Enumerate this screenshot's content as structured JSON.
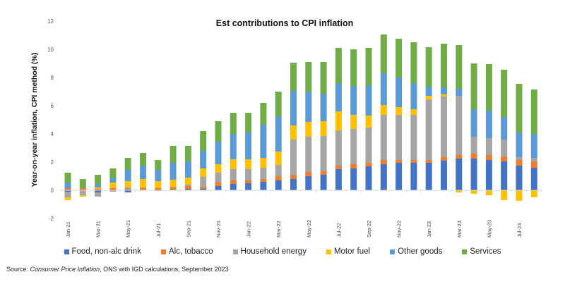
{
  "chart_data": {
    "type": "bar",
    "stacked": true,
    "title": "Est contributions  to CPI inflation",
    "xlabel": "",
    "ylabel": "Year-on-year inflation, CPI method (%)",
    "ylim": [
      -2,
      12
    ],
    "yticks": [
      -2,
      0,
      2,
      4,
      6,
      8,
      10,
      12
    ],
    "grid": false,
    "legend_position": "bottom",
    "categories": [
      "Jan-21",
      "Feb-21",
      "Mar-21",
      "Apr-21",
      "May-21",
      "Jun-21",
      "Jul-21",
      "Aug-21",
      "Sep-21",
      "Oct-21",
      "Nov-21",
      "Dec-21",
      "Jan-22",
      "Feb-22",
      "Mar-22",
      "Apr-22",
      "May-22",
      "Jun-22",
      "Jul-22",
      "Aug-22",
      "Sep-22",
      "Oct-22",
      "Nov-22",
      "Dec-22",
      "Jan-23",
      "Feb-23",
      "Mar-23",
      "Apr-23",
      "May-23",
      "Jun-23",
      "Jul-23",
      "Aug-23"
    ],
    "tick_labels": [
      "Jan-21",
      "",
      "Mar-21",
      "",
      "May-21",
      "",
      "Jul-21",
      "",
      "Sep-21",
      "",
      "Nov-21",
      "",
      "Jan-22",
      "",
      "Mar-22",
      "",
      "May-22",
      "",
      "Jul-22",
      "",
      "Sep-22",
      "",
      "Nov-22",
      "",
      "Jan-23",
      "",
      "Mar-23",
      "",
      "May-23",
      "",
      "Jul-23",
      ""
    ],
    "series": [
      {
        "name": "Food, non-alc drink",
        "color": "#4472C4",
        "values": [
          -0.1,
          0.0,
          -0.15,
          0.0,
          -0.15,
          0.0,
          0.0,
          0.05,
          0.1,
          0.1,
          0.3,
          0.45,
          0.5,
          0.6,
          0.7,
          0.8,
          1.0,
          1.1,
          1.5,
          1.55,
          1.7,
          1.85,
          1.95,
          1.95,
          1.95,
          2.1,
          2.25,
          2.25,
          2.15,
          2.05,
          1.75,
          1.6
        ]
      },
      {
        "name": "Alc, tobacco",
        "color": "#ED7D31",
        "values": [
          0.15,
          0.15,
          0.1,
          0.15,
          0.1,
          0.15,
          0.15,
          0.15,
          0.2,
          0.15,
          0.25,
          0.25,
          0.2,
          0.2,
          0.3,
          0.3,
          0.3,
          0.25,
          0.25,
          0.3,
          0.25,
          0.3,
          0.2,
          0.2,
          0.2,
          0.25,
          0.25,
          0.35,
          0.35,
          0.35,
          0.4,
          0.45
        ]
      },
      {
        "name": "Household energy",
        "color": "#A5A5A5",
        "values": [
          -0.4,
          -0.35,
          -0.3,
          -0.1,
          0.1,
          0.05,
          -0.05,
          0.05,
          0.1,
          0.7,
          0.7,
          0.8,
          0.8,
          0.8,
          0.8,
          2.5,
          2.5,
          2.5,
          2.5,
          2.5,
          2.5,
          3.2,
          3.2,
          3.2,
          4.3,
          4.3,
          4.2,
          1.2,
          1.2,
          1.2,
          0.2,
          0.25
        ]
      },
      {
        "name": "Motor fuel",
        "color": "#FFC000",
        "values": [
          -0.2,
          -0.1,
          0.1,
          0.4,
          0.45,
          0.6,
          0.5,
          0.5,
          0.5,
          0.6,
          0.6,
          0.7,
          0.7,
          0.7,
          0.95,
          1.0,
          1.05,
          1.05,
          1.35,
          1.0,
          0.85,
          0.7,
          0.55,
          0.4,
          0.25,
          0.15,
          -0.15,
          -0.25,
          -0.35,
          -0.7,
          -0.75,
          -0.5
        ]
      },
      {
        "name": "Other goods",
        "color": "#5B9BD5",
        "values": [
          0.4,
          0.0,
          0.25,
          0.3,
          0.8,
          0.95,
          0.8,
          1.2,
          1.15,
          1.25,
          1.6,
          1.8,
          1.9,
          2.35,
          2.5,
          2.45,
          2.15,
          1.95,
          2.0,
          2.05,
          2.15,
          2.25,
          2.1,
          1.85,
          0.65,
          0.5,
          0.5,
          1.95,
          1.95,
          1.6,
          1.75,
          1.7
        ]
      },
      {
        "name": "Services",
        "color": "#70AD47",
        "values": [
          0.7,
          0.65,
          0.65,
          0.7,
          0.85,
          0.9,
          0.7,
          1.2,
          1.1,
          1.4,
          1.45,
          1.5,
          1.4,
          1.55,
          1.75,
          2.0,
          2.1,
          2.25,
          2.5,
          2.6,
          2.65,
          2.75,
          2.75,
          2.9,
          2.8,
          3.1,
          3.1,
          3.25,
          3.3,
          3.35,
          3.45,
          3.15
        ]
      }
    ]
  },
  "legend": [
    {
      "label": "Food, non-alc drink",
      "color": "#4472C4"
    },
    {
      "label": "Alc, tobacco",
      "color": "#ED7D31"
    },
    {
      "label": "Household energy",
      "color": "#A5A5A5"
    },
    {
      "label": "Motor fuel",
      "color": "#FFC000"
    },
    {
      "label": "Other goods",
      "color": "#5B9BD5"
    },
    {
      "label": "Services",
      "color": "#70AD47"
    }
  ],
  "source": {
    "prefix": "Source: ",
    "italic": "Consumer Price Inflation",
    "suffix": ", ONS with IGD calculations, September 2023"
  }
}
